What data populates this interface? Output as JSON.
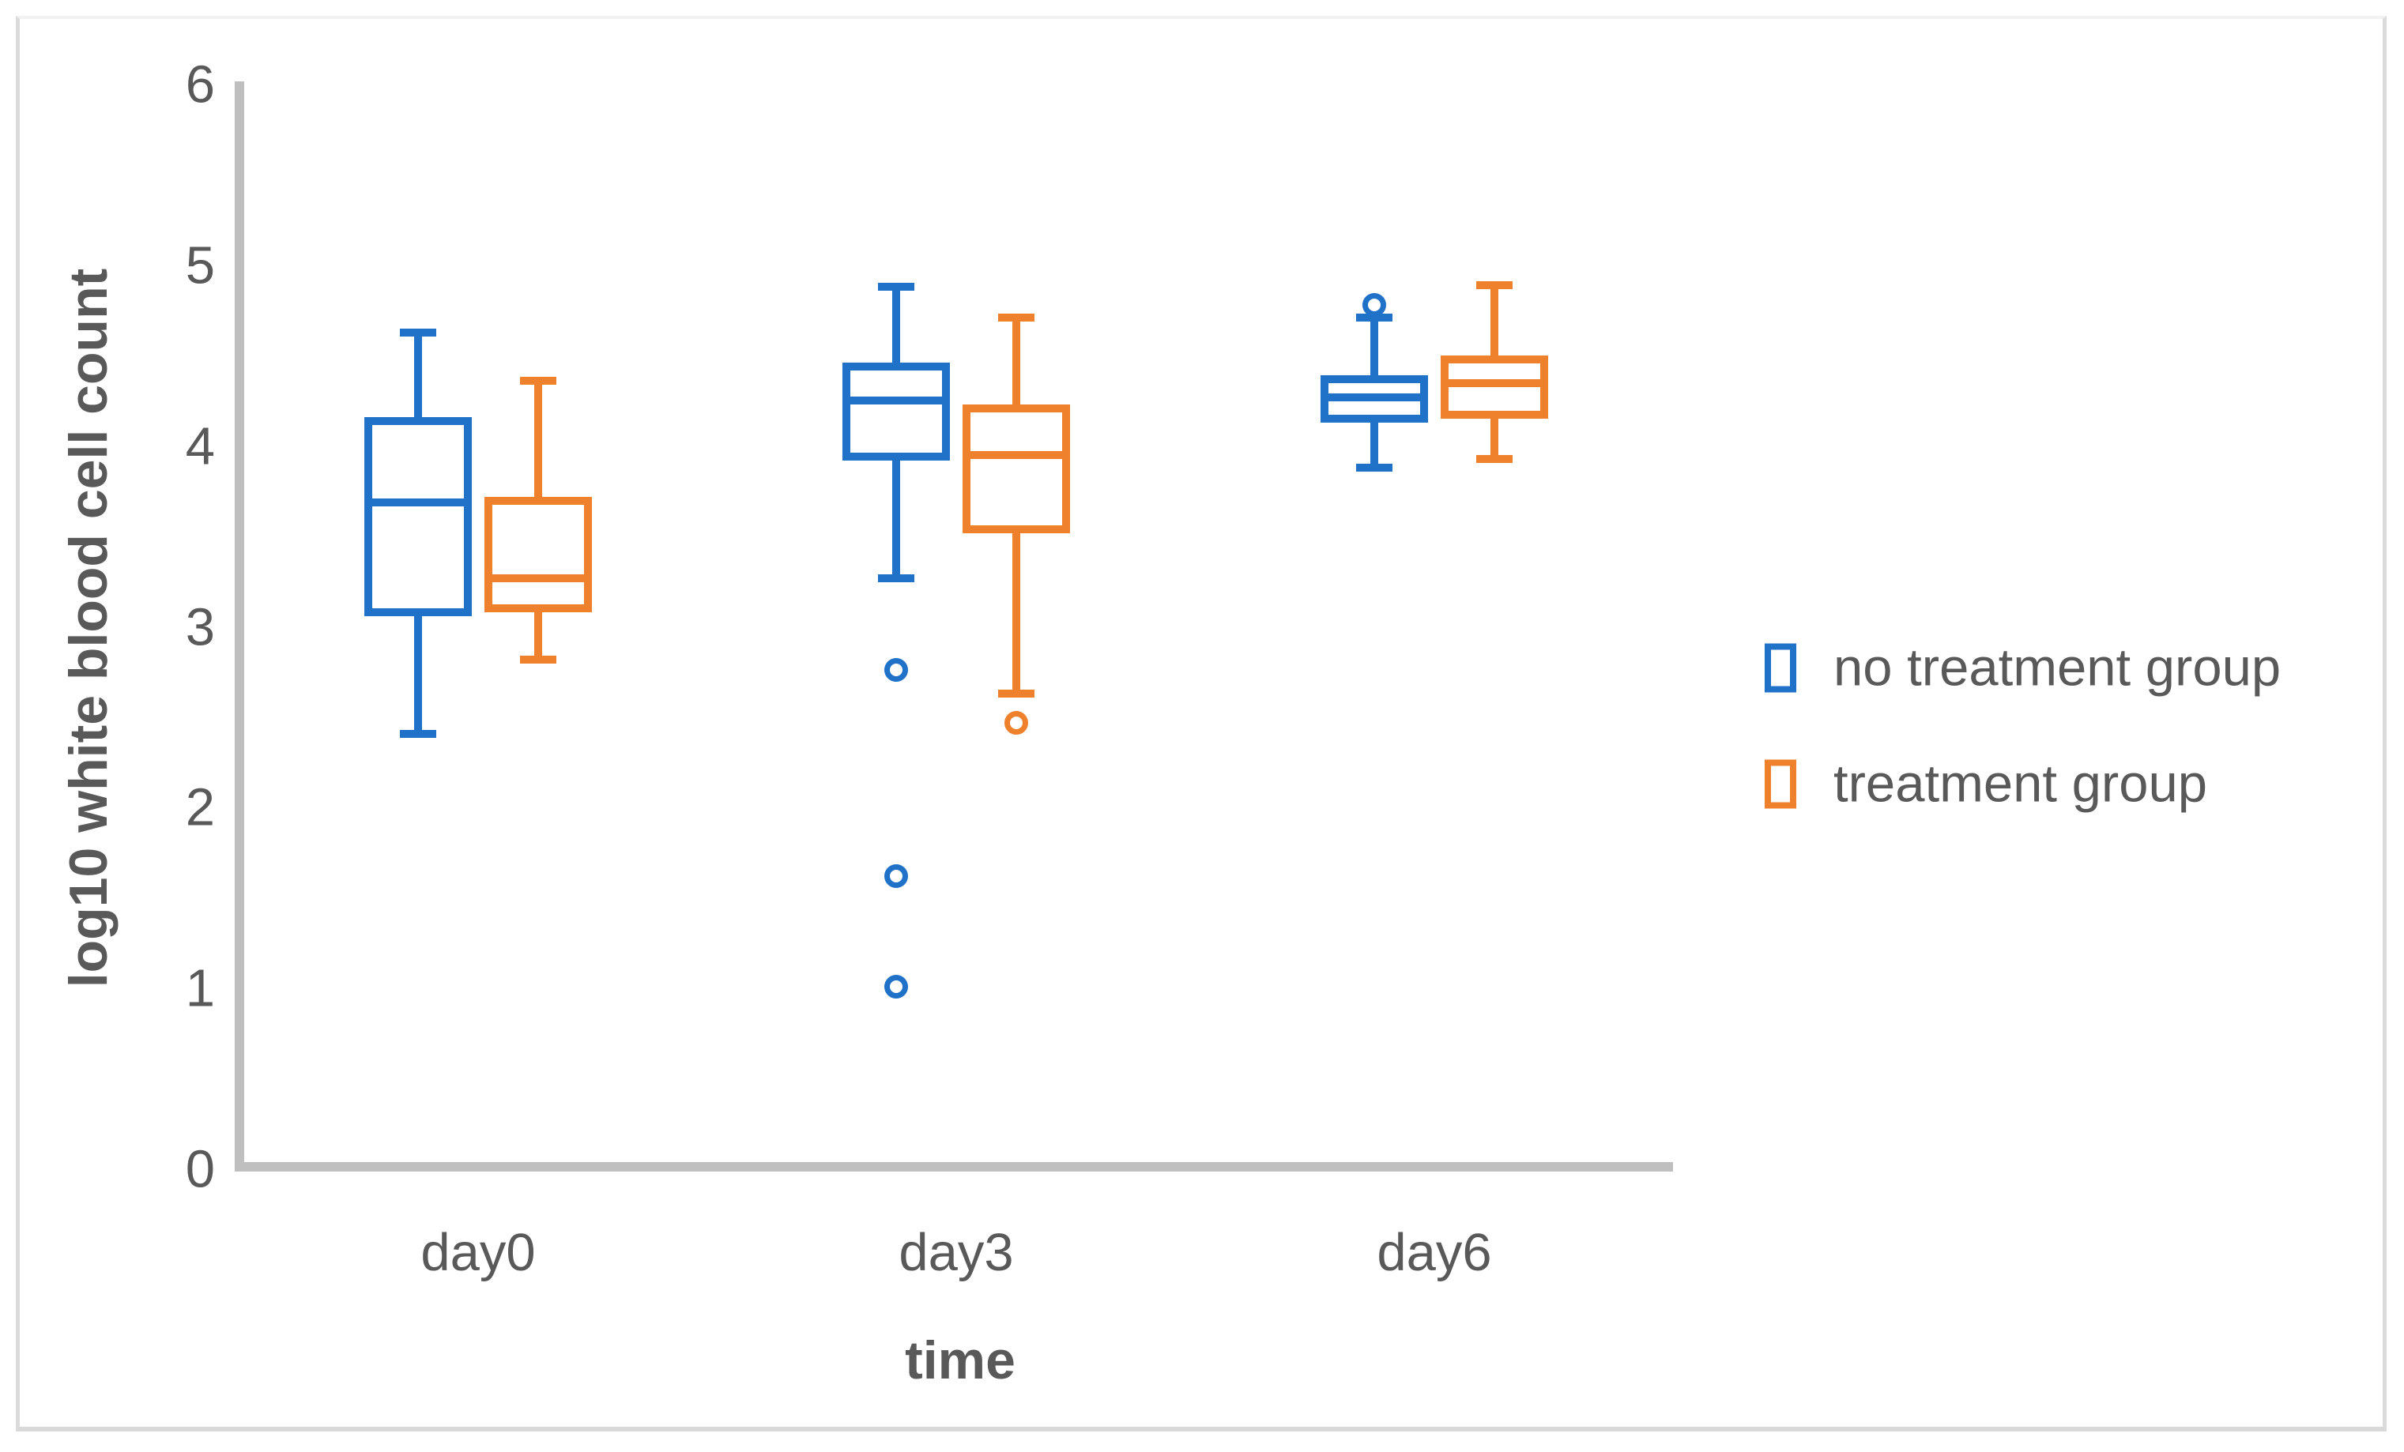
{
  "figure": {
    "background": "#FFFFFF",
    "border_color": "#D9D9D9"
  },
  "colors": {
    "no_treatment": "#1F72C8",
    "treatment": "#F0812C",
    "axis_line": "#BFBFBF",
    "text": "#595959"
  },
  "axes": {
    "y_title": "log10 white blood cell count",
    "x_title": "time",
    "y_ticks": [
      6,
      5,
      4,
      3,
      2,
      1,
      0
    ],
    "x_categories": [
      "day0",
      "day3",
      "day6"
    ]
  },
  "legend": {
    "items": [
      {
        "label": "no treatment group",
        "series": "no_treatment",
        "color": "#1F72C8"
      },
      {
        "label": "treatment group",
        "series": "treatment",
        "color": "#F0812C"
      }
    ]
  },
  "chart_data": {
    "type": "boxplot",
    "title": "",
    "xlabel": "time",
    "ylabel": "log10 white blood cell count",
    "ylim": [
      0,
      6
    ],
    "y_tick_values": [
      0,
      1,
      2,
      3,
      4,
      5,
      6
    ],
    "grid": false,
    "legend_position": "right-middle",
    "categories": [
      "day0",
      "day3",
      "day6"
    ],
    "series": [
      {
        "name": "no treatment group",
        "key": "no-treatment",
        "color": "#1F72C8",
        "boxes": [
          {
            "category": "day0",
            "min": 2.41,
            "q1": 3.06,
            "median": 3.69,
            "q3": 4.16,
            "max": 4.63,
            "outliers": []
          },
          {
            "category": "day3",
            "min": 3.27,
            "q1": 3.92,
            "median": 4.25,
            "q3": 4.46,
            "max": 4.88,
            "outliers": [
              2.76,
              1.62,
              1.01
            ]
          },
          {
            "category": "day6",
            "min": 3.88,
            "q1": 4.13,
            "median": 4.27,
            "q3": 4.39,
            "max": 4.71,
            "outliers": [
              4.78
            ]
          }
        ]
      },
      {
        "name": "treatment group",
        "key": "treatment",
        "color": "#F0812C",
        "boxes": [
          {
            "category": "day0",
            "min": 2.82,
            "q1": 3.08,
            "median": 3.27,
            "q3": 3.72,
            "max": 4.36,
            "outliers": []
          },
          {
            "category": "day3",
            "min": 2.63,
            "q1": 3.52,
            "median": 3.95,
            "q3": 4.23,
            "max": 4.71,
            "outliers": [
              2.47
            ]
          },
          {
            "category": "day6",
            "min": 3.93,
            "q1": 4.15,
            "median": 4.35,
            "q3": 4.5,
            "max": 4.89,
            "outliers": []
          }
        ]
      }
    ]
  }
}
